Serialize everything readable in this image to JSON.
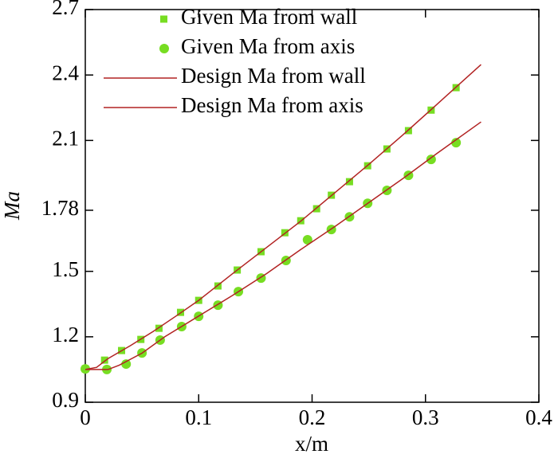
{
  "chart_data": {
    "type": "line",
    "xlabel": "x/m",
    "ylabel": "Ma",
    "xlim": [
      0,
      0.4
    ],
    "xticks": [
      0,
      0.1,
      0.2,
      0.3,
      0.4
    ],
    "ylim": [
      0.9,
      2.7
    ],
    "yticks": [
      0.9,
      1.2,
      1.5,
      1.78,
      2.1,
      2.4,
      2.7
    ],
    "legend": "top-left",
    "series": [
      {
        "name": "Given Ma from wall",
        "color": "#77dd22",
        "marker": "square",
        "x": [
          0,
          0.017,
          0.032,
          0.049,
          0.065,
          0.084,
          0.1,
          0.117,
          0.134,
          0.155,
          0.176,
          0.19,
          0.204,
          0.217,
          0.233,
          0.249,
          0.266,
          0.285,
          0.305,
          0.327
        ],
        "values": [
          1.053,
          1.093,
          1.137,
          1.188,
          1.239,
          1.312,
          1.367,
          1.433,
          1.506,
          1.59,
          1.677,
          1.732,
          1.787,
          1.849,
          1.911,
          1.984,
          2.061,
          2.145,
          2.239,
          2.342
        ]
      },
      {
        "name": "Given Ma from axis",
        "color": "#77dd22",
        "marker": "circle",
        "x": [
          0,
          0.019,
          0.036,
          0.05,
          0.066,
          0.085,
          0.1,
          0.117,
          0.135,
          0.155,
          0.177,
          0.196,
          0.217,
          0.233,
          0.249,
          0.266,
          0.285,
          0.305,
          0.327
        ],
        "values": [
          1.053,
          1.05,
          1.075,
          1.126,
          1.185,
          1.247,
          1.294,
          1.345,
          1.407,
          1.469,
          1.55,
          1.645,
          1.692,
          1.75,
          1.812,
          1.871,
          1.94,
          2.013,
          2.09
        ]
      },
      {
        "name": "Design Ma from wall",
        "color": "#b22222",
        "marker": "line",
        "x": [
          0,
          0.01,
          0.02,
          0.04,
          0.06,
          0.08,
          0.1,
          0.13,
          0.16,
          0.19,
          0.22,
          0.25,
          0.28,
          0.31,
          0.349
        ],
        "values": [
          1.05,
          1.06,
          1.1,
          1.16,
          1.225,
          1.295,
          1.367,
          1.49,
          1.61,
          1.73,
          1.86,
          1.99,
          2.125,
          2.265,
          2.448
        ]
      },
      {
        "name": "Design Ma from axis",
        "color": "#b22222",
        "marker": "line",
        "x": [
          0,
          0.02,
          0.03,
          0.05,
          0.07,
          0.1,
          0.13,
          0.16,
          0.19,
          0.22,
          0.25,
          0.28,
          0.31,
          0.349
        ],
        "values": [
          1.05,
          1.05,
          1.07,
          1.125,
          1.2,
          1.295,
          1.39,
          1.49,
          1.6,
          1.705,
          1.815,
          1.925,
          2.04,
          2.185
        ]
      }
    ]
  }
}
